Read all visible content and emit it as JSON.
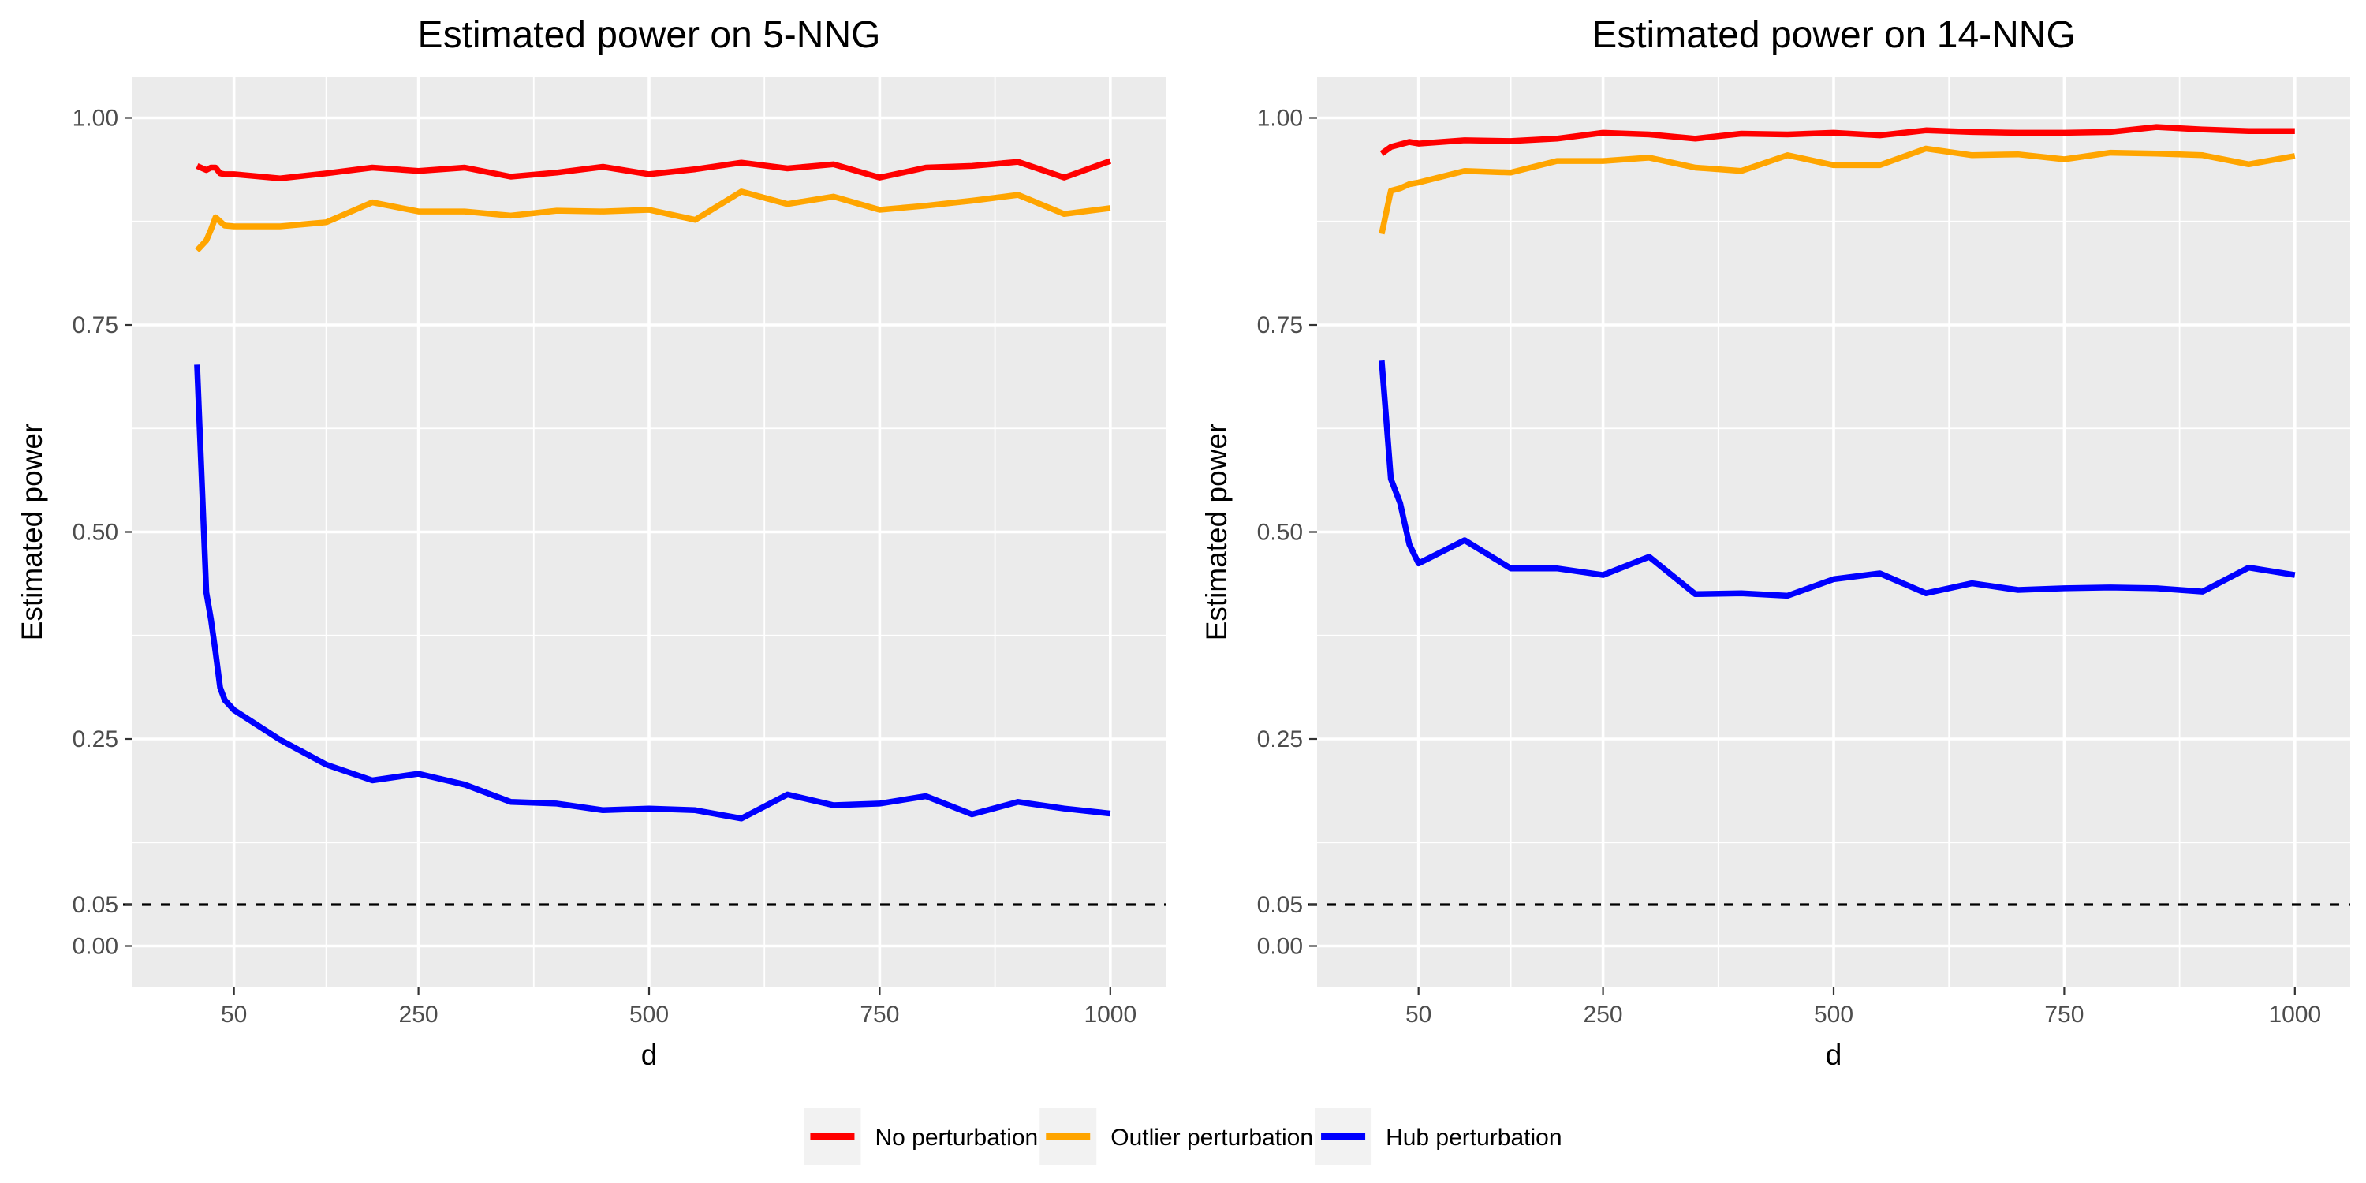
{
  "chart_data": [
    {
      "type": "line",
      "title": "Estimated power on 5-NNG",
      "xlabel": "d",
      "ylabel": "Estimated power",
      "xlim": [
        -60,
        1060
      ],
      "ylim": [
        -0.05,
        1.05
      ],
      "xticks": [
        50,
        250,
        500,
        750,
        1000
      ],
      "xtick_labels": [
        "50",
        "250",
        "500",
        "750",
        "1000"
      ],
      "xminor": [
        150,
        375,
        625,
        875
      ],
      "yticks": [
        0.0,
        0.05,
        0.25,
        0.5,
        0.75,
        1.0
      ],
      "ytick_labels": [
        "0.00",
        "0.05",
        "0.25",
        "0.50",
        "0.75",
        "1.00"
      ],
      "ygrid": [
        0.0,
        0.25,
        0.5,
        0.75,
        1.0
      ],
      "yminor": [
        0.125,
        0.375,
        0.625,
        0.875
      ],
      "hline": {
        "y": 0.05,
        "style": "dashed",
        "color": "#000000"
      },
      "series": [
        {
          "name": "No perturbation",
          "color": "#ff0000",
          "x": [
            10,
            20,
            25,
            30,
            35,
            40,
            50,
            100,
            150,
            200,
            250,
            300,
            350,
            400,
            450,
            500,
            550,
            600,
            650,
            700,
            750,
            800,
            850,
            900,
            950,
            1000
          ],
          "y": [
            0.942,
            0.937,
            0.94,
            0.94,
            0.933,
            0.932,
            0.932,
            0.927,
            0.933,
            0.94,
            0.936,
            0.94,
            0.929,
            0.934,
            0.941,
            0.932,
            0.938,
            0.946,
            0.939,
            0.944,
            0.928,
            0.94,
            0.942,
            0.947,
            0.928,
            0.948
          ]
        },
        {
          "name": "Outlier perturbation",
          "color": "#ffa500",
          "x": [
            10,
            20,
            25,
            30,
            35,
            40,
            50,
            100,
            150,
            200,
            250,
            300,
            350,
            400,
            450,
            500,
            550,
            600,
            650,
            700,
            750,
            800,
            850,
            900,
            950,
            1000
          ],
          "y": [
            0.84,
            0.852,
            0.865,
            0.88,
            0.875,
            0.87,
            0.869,
            0.869,
            0.874,
            0.898,
            0.887,
            0.887,
            0.882,
            0.888,
            0.887,
            0.889,
            0.877,
            0.911,
            0.896,
            0.905,
            0.889,
            0.894,
            0.9,
            0.907,
            0.884,
            0.891
          ]
        },
        {
          "name": "Hub perturbation",
          "color": "#0000ff",
          "x": [
            10,
            20,
            25,
            30,
            35,
            40,
            50,
            100,
            150,
            200,
            250,
            300,
            350,
            400,
            450,
            500,
            550,
            600,
            650,
            700,
            750,
            800,
            850,
            900,
            950,
            1000
          ],
          "y": [
            0.702,
            0.427,
            0.395,
            0.355,
            0.312,
            0.297,
            0.285,
            0.249,
            0.219,
            0.2,
            0.208,
            0.195,
            0.174,
            0.172,
            0.164,
            0.166,
            0.164,
            0.154,
            0.183,
            0.17,
            0.172,
            0.181,
            0.159,
            0.174,
            0.166,
            0.16
          ]
        }
      ]
    },
    {
      "type": "line",
      "title": "Estimated power on 14-NNG",
      "xlabel": "d",
      "ylabel": "Estimated power",
      "xlim": [
        -60,
        1060
      ],
      "ylim": [
        -0.05,
        1.05
      ],
      "xticks": [
        50,
        250,
        500,
        750,
        1000
      ],
      "xtick_labels": [
        "50",
        "250",
        "500",
        "750",
        "1000"
      ],
      "xminor": [
        150,
        375,
        625,
        875
      ],
      "yticks": [
        0.0,
        0.05,
        0.25,
        0.5,
        0.75,
        1.0
      ],
      "ytick_labels": [
        "0.00",
        "0.05",
        "0.25",
        "0.50",
        "0.75",
        "1.00"
      ],
      "ygrid": [
        0.0,
        0.25,
        0.5,
        0.75,
        1.0
      ],
      "yminor": [
        0.125,
        0.375,
        0.625,
        0.875
      ],
      "hline": {
        "y": 0.05,
        "style": "dashed",
        "color": "#000000"
      },
      "series": [
        {
          "name": "No perturbation",
          "color": "#ff0000",
          "x": [
            10,
            20,
            30,
            40,
            50,
            100,
            150,
            200,
            250,
            300,
            350,
            400,
            450,
            500,
            550,
            600,
            650,
            700,
            750,
            800,
            850,
            900,
            950,
            1000
          ],
          "y": [
            0.957,
            0.965,
            0.968,
            0.971,
            0.969,
            0.973,
            0.972,
            0.975,
            0.982,
            0.98,
            0.975,
            0.981,
            0.98,
            0.982,
            0.979,
            0.985,
            0.983,
            0.982,
            0.982,
            0.983,
            0.989,
            0.986,
            0.984,
            0.984
          ]
        },
        {
          "name": "Outlier perturbation",
          "color": "#ffa500",
          "x": [
            10,
            20,
            30,
            40,
            50,
            100,
            150,
            200,
            250,
            300,
            350,
            400,
            450,
            500,
            550,
            600,
            650,
            700,
            750,
            800,
            850,
            900,
            950,
            1000
          ],
          "y": [
            0.86,
            0.912,
            0.915,
            0.92,
            0.922,
            0.936,
            0.934,
            0.948,
            0.948,
            0.952,
            0.94,
            0.936,
            0.955,
            0.943,
            0.943,
            0.963,
            0.955,
            0.956,
            0.95,
            0.958,
            0.957,
            0.955,
            0.944,
            0.954
          ]
        },
        {
          "name": "Hub perturbation",
          "color": "#0000ff",
          "x": [
            10,
            20,
            30,
            40,
            50,
            100,
            150,
            200,
            250,
            300,
            350,
            400,
            450,
            500,
            550,
            600,
            650,
            700,
            750,
            800,
            850,
            900,
            950,
            1000
          ],
          "y": [
            0.707,
            0.564,
            0.535,
            0.485,
            0.462,
            0.49,
            0.456,
            0.456,
            0.448,
            0.47,
            0.425,
            0.426,
            0.423,
            0.443,
            0.45,
            0.426,
            0.438,
            0.43,
            0.432,
            0.433,
            0.432,
            0.428,
            0.457,
            0.448
          ]
        }
      ]
    }
  ],
  "legend": {
    "position": "bottom",
    "items": [
      {
        "label": "No perturbation",
        "color": "#ff0000"
      },
      {
        "label": "Outlier perturbation",
        "color": "#ffa500"
      },
      {
        "label": "Hub perturbation",
        "color": "#0000ff"
      }
    ]
  }
}
